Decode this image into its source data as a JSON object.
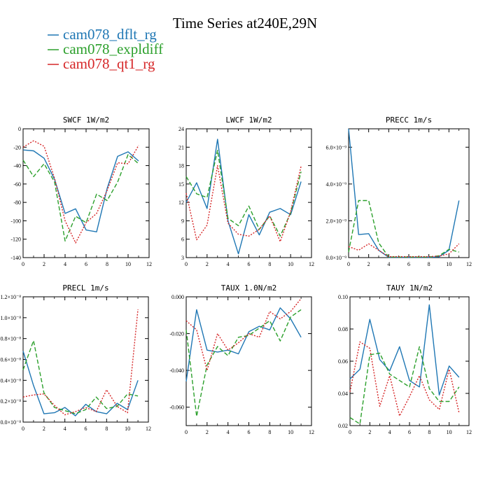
{
  "figure_title": "Time Series at240E,29N",
  "colors": {
    "cam078_dflt_rg": "#1f77b4",
    "cam078_expldiff": "#2ca02c",
    "cam078_qt1_rg": "#d62728"
  },
  "legend": [
    {
      "label": "cam078_dflt_rg",
      "color": "#1f77b4",
      "dash": "solid"
    },
    {
      "label": "cam078_expldiff",
      "color": "#2ca02c",
      "dash": "longdash"
    },
    {
      "label": "cam078_qt1_rg",
      "color": "#d62728",
      "dash": "dotted"
    }
  ],
  "chart_data": [
    {
      "type": "line",
      "title": "SWCF   1W/m2",
      "x": [
        0,
        1,
        2,
        3,
        4,
        5,
        6,
        7,
        8,
        9,
        10,
        11
      ],
      "xlim": [
        0,
        12
      ],
      "xticks": [
        0,
        2,
        4,
        6,
        8,
        10,
        12
      ],
      "xtick_labels": [
        "0",
        "2",
        "4",
        "6",
        "8",
        "10",
        "12"
      ],
      "ylim": [
        -140,
        0
      ],
      "yticks": [
        -140,
        -120,
        -100,
        -80,
        -60,
        -40,
        -20,
        0
      ],
      "ytick_labels": [
        "-140",
        "-120",
        "-100",
        "-80",
        "-60",
        "-40",
        "-20",
        "0"
      ],
      "series": [
        {
          "name": "cam078_dflt_rg",
          "values": [
            -23,
            -24,
            -32,
            -55,
            -92,
            -87,
            -110,
            -112,
            -65,
            -30,
            -25,
            -35
          ]
        },
        {
          "name": "cam078_expldiff",
          "values": [
            -34,
            -52,
            -38,
            -58,
            -122,
            -95,
            -102,
            -71,
            -78,
            -58,
            -28,
            -38
          ]
        },
        {
          "name": "cam078_qt1_rg",
          "values": [
            -20,
            -13,
            -19,
            -54,
            -100,
            -124,
            -102,
            -92,
            -67,
            -37,
            -38,
            -18
          ]
        }
      ]
    },
    {
      "type": "line",
      "title": "LWCF   1W/m2",
      "x": [
        0,
        1,
        2,
        3,
        4,
        5,
        6,
        7,
        8,
        9,
        10,
        11
      ],
      "xlim": [
        0,
        12
      ],
      "xticks": [
        0,
        2,
        4,
        6,
        8,
        10,
        12
      ],
      "xtick_labels": [
        "0",
        "2",
        "4",
        "6",
        "8",
        "10",
        "12"
      ],
      "ylim": [
        3,
        24
      ],
      "yticks": [
        3,
        6,
        9,
        12,
        15,
        18,
        21,
        24
      ],
      "ytick_labels": [
        "3",
        "6",
        "9",
        "12",
        "15",
        "18",
        "21",
        "24"
      ],
      "series": [
        {
          "name": "cam078_dflt_rg",
          "values": [
            12,
            15.2,
            11,
            22.3,
            9,
            3.6,
            10,
            6.7,
            10.4,
            11,
            10,
            15.4
          ]
        },
        {
          "name": "cam078_expldiff",
          "values": [
            16.2,
            13.4,
            12.8,
            20.5,
            9.4,
            8.2,
            11.4,
            7.6,
            9.8,
            6.5,
            10.3,
            17
          ]
        },
        {
          "name": "cam078_qt1_rg",
          "values": [
            13.5,
            5.9,
            8.3,
            18,
            8.6,
            6.8,
            6.5,
            7.6,
            9.8,
            5.6,
            10.5,
            17.9
          ]
        }
      ]
    },
    {
      "type": "line",
      "title": "PRECC   1m/s",
      "x": [
        0,
        1,
        2,
        3,
        4,
        5,
        6,
        7,
        8,
        9,
        10,
        11
      ],
      "xlim": [
        0,
        12
      ],
      "xticks": [
        0,
        2,
        4,
        6,
        8,
        10,
        12
      ],
      "xtick_labels": [
        "0",
        "2",
        "4",
        "6",
        "8",
        "10",
        "12"
      ],
      "ylim": [
        0,
        7e-09
      ],
      "yticks": [
        0,
        2e-09,
        4e-09,
        6e-09
      ],
      "ytick_labels": [
        "0.0×10⁻⁹",
        "2.0×10⁻⁹",
        "4.0×10⁻⁹",
        "6.0×10⁻⁹"
      ],
      "series": [
        {
          "name": "cam078_dflt_rg",
          "values": [
            7e-09,
            1.25e-09,
            1.3e-09,
            4e-10,
            2e-11,
            2e-11,
            2e-11,
            2e-11,
            2e-11,
            4e-11,
            4e-10,
            3.1e-09
          ]
        },
        {
          "name": "cam078_expldiff",
          "values": [
            3e-10,
            3.1e-09,
            3.1e-09,
            8e-10,
            3e-11,
            3e-11,
            3e-11,
            3e-11,
            3e-11,
            1e-10,
            4.5e-10,
            3e-10
          ]
        },
        {
          "name": "cam078_qt1_rg",
          "values": [
            6e-10,
            4e-10,
            7.5e-10,
            4e-10,
            5e-11,
            5e-11,
            5e-11,
            5e-11,
            5e-11,
            8e-11,
            2e-10,
            7.5e-10
          ]
        }
      ]
    },
    {
      "type": "line",
      "title": "PRECL   1m/s",
      "x": [
        0,
        1,
        2,
        3,
        4,
        5,
        6,
        7,
        8,
        9,
        10,
        11
      ],
      "xlim": [
        0,
        12
      ],
      "xticks": [
        0,
        2,
        4,
        6,
        8,
        10,
        12
      ],
      "xtick_labels": [
        "0",
        "2",
        "4",
        "6",
        "8",
        "10",
        "12"
      ],
      "ylim": [
        0,
        1.2e-08
      ],
      "yticks": [
        0,
        2e-09,
        4e-09,
        6e-09,
        8e-09,
        1e-08,
        1.2e-08
      ],
      "ytick_labels": [
        "0.0×10⁻⁸",
        "0.2×10⁻⁸",
        "0.4×10⁻⁸",
        "0.6×10⁻⁸",
        "0.8×10⁻⁸",
        "1.0×10⁻⁸",
        "1.2×10⁻⁸"
      ],
      "series": [
        {
          "name": "cam078_dflt_rg",
          "values": [
            6.8e-09,
            3.5e-09,
            8e-10,
            9e-10,
            1.4e-09,
            6e-10,
            1.7e-09,
            1e-09,
            8e-10,
            1.8e-09,
            1.2e-09,
            4e-09
          ]
        },
        {
          "name": "cam078_expldiff",
          "values": [
            5e-09,
            7.8e-09,
            2.8e-09,
            1.4e-09,
            1.1e-09,
            8e-10,
            1.2e-09,
            2.4e-09,
            1.3e-09,
            1.5e-09,
            2.7e-09,
            2.5e-09
          ]
        },
        {
          "name": "cam078_qt1_rg",
          "values": [
            2.4e-09,
            2.6e-09,
            2.7e-09,
            1.6e-09,
            7e-10,
            1e-09,
            1.4e-09,
            1e-09,
            3.1e-09,
            1.5e-09,
            9e-10,
            1.08e-08
          ]
        }
      ]
    },
    {
      "type": "line",
      "title": "TAUX   1.0N/m2",
      "x": [
        0,
        1,
        2,
        3,
        4,
        5,
        6,
        7,
        8,
        9,
        10,
        11
      ],
      "xlim": [
        0,
        12
      ],
      "xticks": [
        0,
        2,
        4,
        6,
        8,
        10,
        12
      ],
      "xtick_labels": [
        "0",
        "2",
        "4",
        "6",
        "8",
        "10",
        "12"
      ],
      "ylim": [
        -0.07,
        0
      ],
      "yticks": [
        -0.06,
        -0.04,
        -0.02,
        0
      ],
      "ytick_labels": [
        "-0.060",
        "-0.040",
        "-0.020",
        "0.000"
      ],
      "series": [
        {
          "name": "cam078_dflt_rg",
          "values": [
            -0.046,
            -0.007,
            -0.029,
            -0.03,
            -0.029,
            -0.031,
            -0.019,
            -0.016,
            -0.018,
            -0.006,
            -0.012,
            -0.022
          ]
        },
        {
          "name": "cam078_expldiff",
          "values": [
            -0.018,
            -0.065,
            -0.037,
            -0.027,
            -0.032,
            -0.022,
            -0.021,
            -0.017,
            -0.013,
            -0.024,
            -0.011,
            -0.007
          ]
        },
        {
          "name": "cam078_qt1_rg",
          "values": [
            -0.013,
            -0.018,
            -0.04,
            -0.02,
            -0.029,
            -0.025,
            -0.02,
            -0.022,
            -0.008,
            -0.012,
            -0.008,
            -0.001
          ]
        }
      ]
    },
    {
      "type": "line",
      "title": "TAUY   1N/m2",
      "x": [
        0,
        1,
        2,
        3,
        4,
        5,
        6,
        7,
        8,
        9,
        10,
        11
      ],
      "xlim": [
        0,
        12
      ],
      "xticks": [
        0,
        2,
        4,
        6,
        8,
        10,
        12
      ],
      "xtick_labels": [
        "0",
        "2",
        "4",
        "6",
        "8",
        "10",
        "12"
      ],
      "ylim": [
        0.02,
        0.1
      ],
      "yticks": [
        0.02,
        0.04,
        0.06,
        0.08,
        0.1
      ],
      "ytick_labels": [
        "0.02",
        "0.04",
        "0.06",
        "0.08",
        "0.10"
      ],
      "series": [
        {
          "name": "cam078_dflt_rg",
          "values": [
            0.049,
            0.055,
            0.086,
            0.061,
            0.054,
            0.069,
            0.048,
            0.044,
            0.095,
            0.039,
            0.057,
            0.05
          ]
        },
        {
          "name": "cam078_expldiff",
          "values": [
            0.025,
            0.021,
            0.064,
            0.065,
            0.052,
            0.048,
            0.044,
            0.069,
            0.043,
            0.035,
            0.035,
            0.044
          ]
        },
        {
          "name": "cam078_qt1_rg",
          "values": [
            0.041,
            0.072,
            0.068,
            0.032,
            0.051,
            0.026,
            0.038,
            0.051,
            0.036,
            0.03,
            0.055,
            0.028
          ]
        }
      ]
    }
  ]
}
